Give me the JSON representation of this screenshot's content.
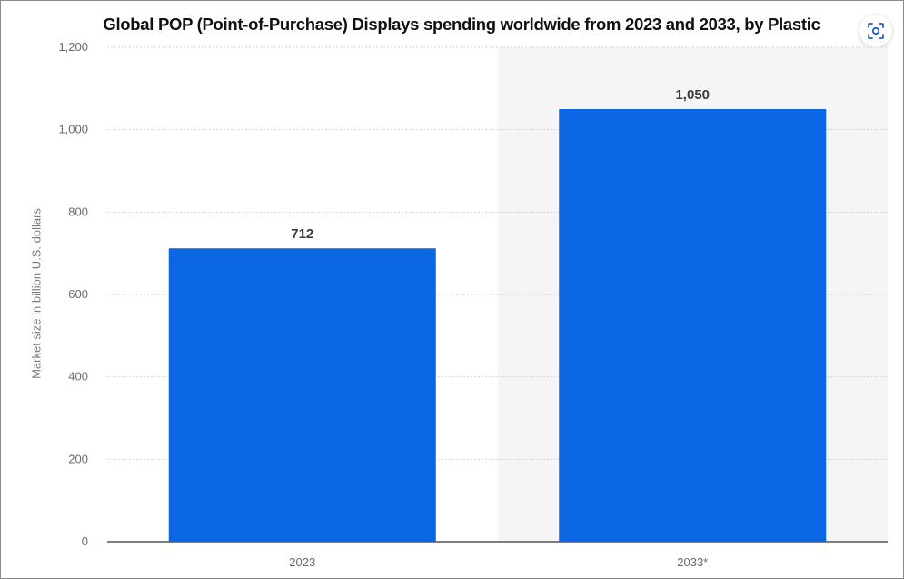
{
  "chart_data": {
    "type": "bar",
    "title": "Global POP (Point-of-Purchase) Displays spending worldwide from 2023 and 2033, by Plastic",
    "xlabel": "",
    "ylabel": "Market size in billion U.S. dollars",
    "categories": [
      "2023",
      "2033*"
    ],
    "values": [
      712,
      1050
    ],
    "value_labels": [
      "712",
      "1,050"
    ],
    "ylim": [
      0,
      1200
    ],
    "yticks": [
      0,
      200,
      400,
      600,
      800,
      1000,
      1200
    ],
    "ytick_labels": [
      "0",
      "200",
      "400",
      "600",
      "800",
      "1,000",
      "1,200"
    ],
    "grid": true,
    "forecast_shading_category": "2033*",
    "bar_color": "#0b66e4",
    "shading_color": "#f5f5f5"
  },
  "toolbar": {
    "lens_icon": "image-search-icon"
  }
}
